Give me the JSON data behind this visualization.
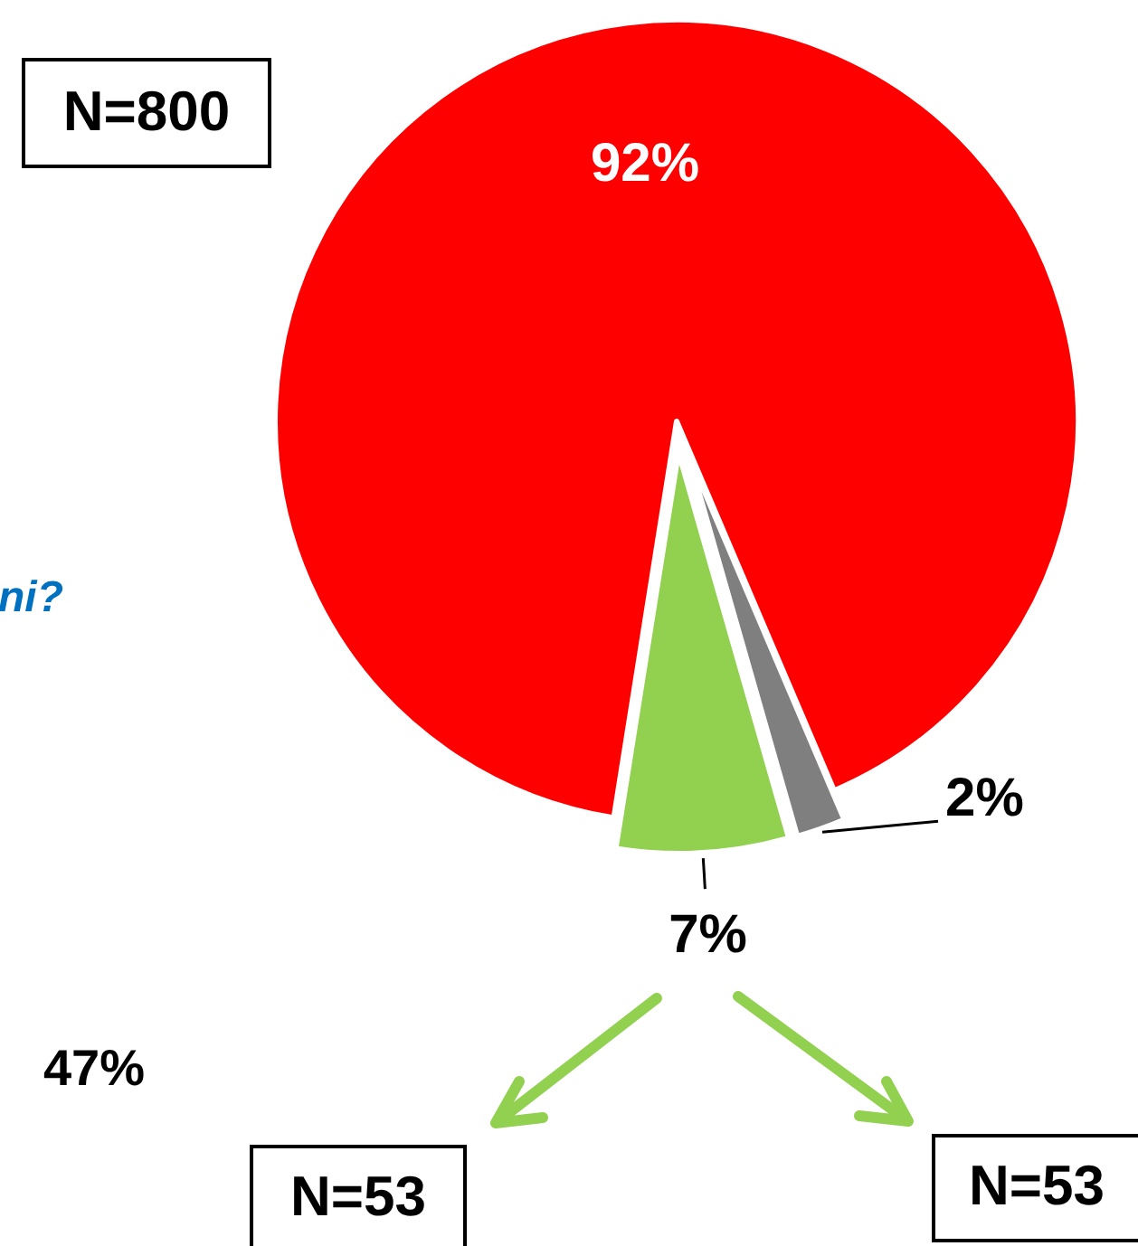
{
  "chart_data": {
    "type": "pie",
    "categories": [
      null,
      null,
      null
    ],
    "values": [
      92,
      2,
      7
    ],
    "colors": [
      "#ff0000",
      "#7f7f7f",
      "#92d050"
    ],
    "value_labels": [
      "92%",
      "2%",
      "7%"
    ],
    "annotations": [
      "N=800",
      "ni?",
      "47%",
      "N=53",
      "N=53"
    ]
  }
}
